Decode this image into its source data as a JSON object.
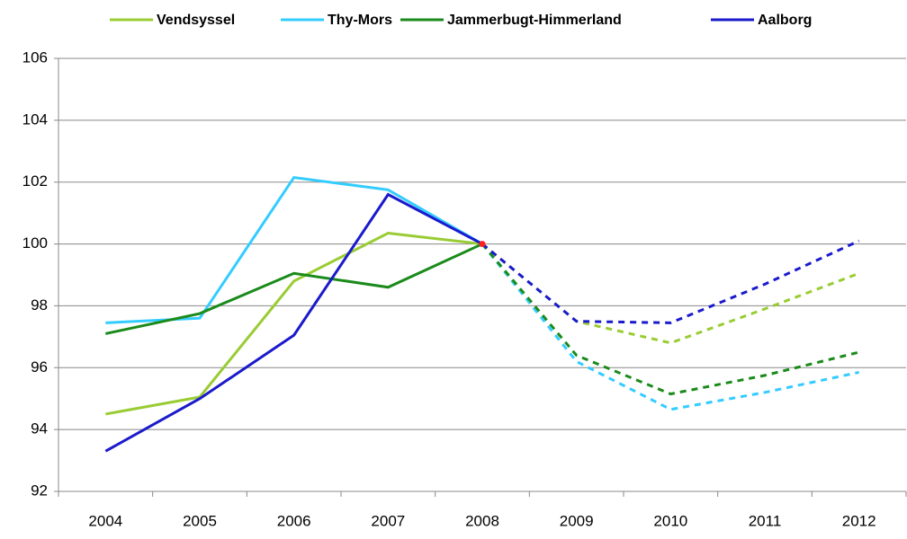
{
  "chart_data": {
    "type": "line",
    "categories": [
      "2004",
      "2005",
      "2006",
      "2007",
      "2008",
      "2009",
      "2010",
      "2011",
      "2012"
    ],
    "series": [
      {
        "name": "Vendsyssel",
        "color": "#99cc33",
        "values": [
          94.5,
          95.05,
          98.8,
          100.35,
          100,
          97.5,
          96.8,
          97.9,
          99.05
        ]
      },
      {
        "name": "Thy-Mors",
        "color": "#33ccff",
        "values": [
          97.45,
          97.6,
          102.15,
          101.75,
          100,
          96.2,
          94.65,
          95.2,
          95.85
        ]
      },
      {
        "name": "Jammerbugt-Himmerland",
        "color": "#1a8a1a",
        "values": [
          97.1,
          97.75,
          99.05,
          98.6,
          100,
          96.4,
          95.15,
          95.75,
          96.5
        ]
      },
      {
        "name": "Aalborg",
        "color": "#1a1acc",
        "values": [
          93.3,
          95.0,
          97.05,
          101.6,
          100,
          97.5,
          97.45,
          98.7,
          100.1
        ]
      }
    ],
    "dashed_from": "2008",
    "highlight": {
      "x": "2008",
      "y": 100,
      "color": "#ff2020"
    },
    "ylim": [
      92,
      106
    ],
    "yticks": [
      92,
      94,
      96,
      98,
      100,
      102,
      104,
      106
    ],
    "grid": true,
    "legend": "top"
  }
}
